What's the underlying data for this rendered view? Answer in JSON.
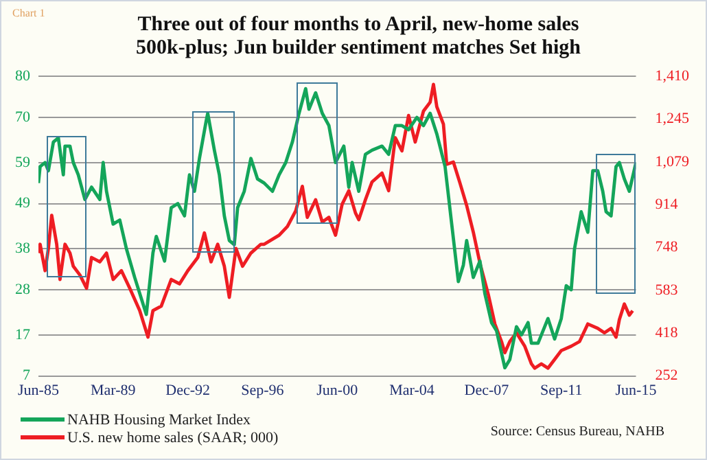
{
  "chart_data": {
    "type": "line",
    "title": "Three out of four months to April, new-home sales 500k-plus; Jun builder sentiment matches Set high",
    "annotations": [
      "Chart 1",
      "Source: Census Bureau, NAHB"
    ],
    "xlim": [
      "1985-06",
      "2015-06"
    ],
    "xticks": [
      {
        "value": "1985-06",
        "label": "Jun-85"
      },
      {
        "value": "1989-03",
        "label": "Mar-89"
      },
      {
        "value": "1992-12",
        "label": "Dec-92"
      },
      {
        "value": "1996-09",
        "label": "Sep-96"
      },
      {
        "value": "2000-06",
        "label": "Jun-00"
      },
      {
        "value": "2004-03",
        "label": "Mar-04"
      },
      {
        "value": "2007-12",
        "label": "Dec-07"
      },
      {
        "value": "2011-09",
        "label": "Sep-11"
      },
      {
        "value": "2015-06",
        "label": "Jun-15"
      }
    ],
    "ylim": [
      7,
      80
    ],
    "yticks": [
      7,
      17,
      28,
      38,
      49,
      59,
      70,
      80
    ],
    "y2lim": [
      252,
      1410
    ],
    "y2ticks": [
      252,
      418,
      583,
      748,
      914,
      {
        "value": 1079,
        "label": "1,079"
      },
      {
        "value": 1245,
        "label": "1,245"
      },
      {
        "value": 1410,
        "label": "1,410"
      }
    ],
    "grid": "y",
    "legend": "bottom left",
    "marker": "none",
    "line_style": "solid",
    "series": [
      {
        "name": "NAHB Housing Market Index",
        "color": "#14a55a",
        "x": [
          "1985-06",
          "1985-07",
          "1985-10",
          "1985-12",
          "1986-03",
          "1986-06",
          "1986-09",
          "1986-10",
          "1987-01",
          "1987-03",
          "1987-06",
          "1987-10",
          "1988-02",
          "1988-07",
          "1988-09",
          "1988-11",
          "1989-03",
          "1989-07",
          "1989-11",
          "1990-04",
          "1990-11",
          "1991-03",
          "1991-05",
          "1991-10",
          "1992-02",
          "1992-06",
          "1992-10",
          "1993-01",
          "1993-04",
          "1993-07",
          "1993-11",
          "1993-12",
          "1994-04",
          "1994-07",
          "1994-10",
          "1995-01",
          "1995-04",
          "1995-06",
          "1995-10",
          "1996-02",
          "1996-06",
          "1996-10",
          "1997-03",
          "1997-07",
          "1997-11",
          "1998-03",
          "1998-07",
          "1998-11",
          "1999-01",
          "1999-05",
          "1999-09",
          "2000-01",
          "2000-05",
          "2000-10",
          "2001-01",
          "2001-03",
          "2001-07",
          "2001-11",
          "2002-03",
          "2002-09",
          "2003-01",
          "2003-05",
          "2003-09",
          "2004-01",
          "2004-06",
          "2004-10",
          "2005-02",
          "2005-06",
          "2005-11",
          "2006-03",
          "2006-07",
          "2006-10",
          "2006-12",
          "2007-04",
          "2007-08",
          "2007-11",
          "2008-03",
          "2008-06",
          "2008-11",
          "2009-02",
          "2009-06",
          "2009-09",
          "2010-01",
          "2010-03",
          "2010-07",
          "2010-11",
          "2011-01",
          "2011-05",
          "2011-09",
          "2011-12",
          "2012-03",
          "2012-05",
          "2012-09",
          "2013-01",
          "2013-04",
          "2013-07",
          "2013-10",
          "2013-12",
          "2014-03",
          "2014-06",
          "2014-08",
          "2014-11",
          "2015-02",
          "2015-06"
        ],
        "values": [
          54,
          58,
          59,
          57,
          64,
          65,
          56,
          63,
          63,
          59,
          56,
          50,
          53,
          50,
          59,
          52,
          44,
          45,
          38,
          31,
          22,
          37,
          41,
          35,
          48,
          49,
          46,
          56,
          52,
          60,
          69,
          71,
          62,
          56,
          46,
          40,
          39,
          48,
          52,
          60,
          55,
          54,
          52,
          56,
          59,
          64,
          71,
          77,
          72,
          76,
          71,
          68,
          59,
          63,
          53,
          59,
          52,
          61,
          62,
          63,
          61,
          68,
          68,
          67,
          70,
          68,
          71,
          66,
          58,
          44,
          30,
          34,
          40,
          31,
          35,
          27,
          20,
          18,
          9,
          11,
          19,
          17,
          20,
          15,
          15,
          19,
          21,
          16,
          21,
          29,
          28,
          38,
          47,
          42,
          57,
          57,
          52,
          47,
          46,
          58,
          59,
          55,
          52,
          59
        ]
      },
      {
        "name": "U.S. new home sales (SAAR; 000)",
        "color": "#ee1d23",
        "axis": "y2",
        "x": [
          "1985-06",
          "1985-07",
          "1985-10",
          "1985-12",
          "1986-02",
          "1986-05",
          "1986-07",
          "1986-10",
          "1987-01",
          "1987-03",
          "1987-07",
          "1987-11",
          "1988-02",
          "1988-07",
          "1988-11",
          "1989-03",
          "1989-08",
          "1990-01",
          "1990-07",
          "1990-12",
          "1991-03",
          "1991-08",
          "1992-02",
          "1992-07",
          "1992-12",
          "1993-06",
          "1993-10",
          "1994-02",
          "1994-06",
          "1994-10",
          "1995-01",
          "1995-05",
          "1995-09",
          "1996-02",
          "1996-08",
          "1996-10",
          "1997-07",
          "1997-12",
          "1998-05",
          "1998-09",
          "1998-12",
          "1999-05",
          "1999-09",
          "2000-01",
          "2000-05",
          "2000-09",
          "2001-01",
          "2001-05",
          "2001-07",
          "2001-11",
          "2002-03",
          "2002-09",
          "2003-01",
          "2003-05",
          "2003-09",
          "2004-01",
          "2004-05",
          "2004-10",
          "2005-02",
          "2005-04",
          "2005-06",
          "2005-10",
          "2005-12",
          "2006-04",
          "2006-08",
          "2006-12",
          "2007-04",
          "2007-08",
          "2008-01",
          "2008-05",
          "2008-09",
          "2008-11",
          "2009-02",
          "2009-06",
          "2009-11",
          "2010-03",
          "2010-05",
          "2010-09",
          "2011-01",
          "2011-05",
          "2011-09",
          "2012-03",
          "2012-08",
          "2013-01",
          "2013-07",
          "2013-11",
          "2014-03",
          "2014-06",
          "2014-08",
          "2014-11",
          "2015-02",
          "2015-04"
        ],
        "values": [
          727,
          761,
          659,
          745,
          873,
          761,
          625,
          761,
          727,
          676,
          642,
          591,
          710,
          693,
          727,
          625,
          659,
          591,
          505,
          402,
          505,
          522,
          625,
          608,
          659,
          710,
          805,
          693,
          761,
          676,
          556,
          745,
          676,
          727,
          761,
          761,
          796,
          830,
          890,
          985,
          865,
          933,
          847,
          865,
          796,
          916,
          968,
          882,
          856,
          933,
          1002,
          1036,
          968,
          1173,
          1122,
          1259,
          1156,
          1276,
          1310,
          1379,
          1293,
          1225,
          1070,
          1079,
          997,
          911,
          808,
          688,
          568,
          453,
          385,
          342,
          385,
          419,
          367,
          299,
          282,
          299,
          282,
          316,
          350,
          367,
          385,
          453,
          436,
          419,
          436,
          402,
          470,
          530,
          487,
          504
        ]
      }
    ]
  }
}
